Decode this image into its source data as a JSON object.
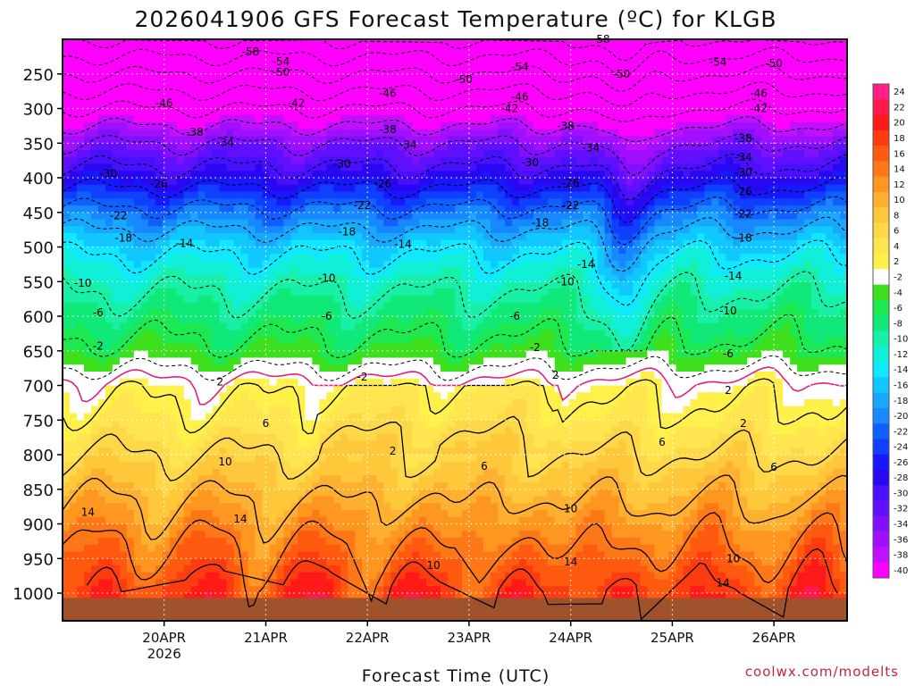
{
  "chart_data": {
    "type": "heatmap",
    "title": "2026041906 GFS Forecast Temperature (ºC) for KLGB",
    "xlabel": "Forecast Time (UTC)",
    "ylabel": "",
    "credit": "coolwx.com/modelts",
    "x_ticks": [
      {
        "label": "20APR",
        "sublabel": "2026",
        "day": 1
      },
      {
        "label": "21APR",
        "day": 2
      },
      {
        "label": "22APR",
        "day": 3
      },
      {
        "label": "23APR",
        "day": 4
      },
      {
        "label": "24APR",
        "day": 5
      },
      {
        "label": "25APR",
        "day": 6
      },
      {
        "label": "26APR",
        "day": 7
      }
    ],
    "xlim_days": [
      0.0,
      7.72
    ],
    "ylim_hpa": [
      1040,
      200
    ],
    "y_ticks": [
      250,
      300,
      350,
      400,
      450,
      500,
      550,
      600,
      650,
      700,
      750,
      800,
      850,
      900,
      950,
      1000
    ],
    "colorbar": {
      "labels": [
        24,
        22,
        20,
        18,
        16,
        14,
        12,
        10,
        8,
        6,
        4,
        2,
        -2,
        -4,
        -6,
        -8,
        -10,
        -12,
        -14,
        -16,
        -18,
        -20,
        -22,
        -24,
        -26,
        -28,
        -30,
        -32,
        -34,
        -36,
        -38,
        -40
      ],
      "colors": [
        "#ff1f86",
        "#ff1a4d",
        "#ff1a1a",
        "#ff3c10",
        "#ff5a10",
        "#ff7818",
        "#ff9620",
        "#ffb030",
        "#ffc83a",
        "#ffd84a",
        "#ffe650",
        "#fff04a",
        "#ffffff",
        "#3ee01e",
        "#1ee850",
        "#10e878",
        "#18f0a8",
        "#10f0d8",
        "#10e8ff",
        "#10c8ff",
        "#18a8ff",
        "#1888ff",
        "#1060ff",
        "#1040ff",
        "#1818ff",
        "#2808f0",
        "#4810ff",
        "#6010ff",
        "#8010ff",
        "#a010ff",
        "#c010ff",
        "#ff00ff"
      ]
    },
    "profile_pressure_hpa": [
      1000,
      950,
      900,
      850,
      800,
      750,
      700,
      650,
      600,
      550,
      500,
      450,
      400,
      350,
      300,
      250,
      200
    ],
    "profile_temperature_c": [
      18,
      15,
      12,
      9,
      6,
      3,
      1,
      -5,
      -8,
      -11,
      -15,
      -21,
      -28,
      -34,
      -42,
      -50,
      -58
    ],
    "contour_annotations": [
      {
        "value": "-58",
        "day": 1.85,
        "p": 218
      },
      {
        "value": "-58",
        "day": 5.3,
        "p": 200
      },
      {
        "value": "-54",
        "day": 2.15,
        "p": 232
      },
      {
        "value": "-54",
        "day": 4.5,
        "p": 240
      },
      {
        "value": "-54",
        "day": 6.45,
        "p": 233
      },
      {
        "value": "-50",
        "day": 2.15,
        "p": 248
      },
      {
        "value": "-50",
        "day": 3.95,
        "p": 258
      },
      {
        "value": "-50",
        "day": 5.5,
        "p": 250
      },
      {
        "value": "-50",
        "day": 7.0,
        "p": 235
      },
      {
        "value": "-46",
        "day": 1.0,
        "p": 292
      },
      {
        "value": "-46",
        "day": 3.2,
        "p": 278
      },
      {
        "value": "-46",
        "day": 4.5,
        "p": 283
      },
      {
        "value": "-46",
        "day": 6.85,
        "p": 278
      },
      {
        "value": "-42",
        "day": 2.3,
        "p": 292
      },
      {
        "value": "-42",
        "day": 4.4,
        "p": 300
      },
      {
        "value": "-42",
        "day": 6.85,
        "p": 300
      },
      {
        "value": "-38",
        "day": 1.3,
        "p": 334
      },
      {
        "value": "-38",
        "day": 3.2,
        "p": 330
      },
      {
        "value": "-38",
        "day": 4.95,
        "p": 325
      },
      {
        "value": "-38",
        "day": 6.7,
        "p": 343
      },
      {
        "value": "-34",
        "day": 1.6,
        "p": 349
      },
      {
        "value": "-34",
        "day": 3.4,
        "p": 352
      },
      {
        "value": "-34",
        "day": 5.2,
        "p": 357
      },
      {
        "value": "-34",
        "day": 6.7,
        "p": 370
      },
      {
        "value": "-30",
        "day": 0.45,
        "p": 394
      },
      {
        "value": "-30",
        "day": 2.75,
        "p": 380
      },
      {
        "value": "-30",
        "day": 4.6,
        "p": 378
      },
      {
        "value": "-30",
        "day": 6.7,
        "p": 392
      },
      {
        "value": "-26",
        "day": 0.95,
        "p": 409
      },
      {
        "value": "-26",
        "day": 3.15,
        "p": 409
      },
      {
        "value": "-26",
        "day": 5.0,
        "p": 408
      },
      {
        "value": "-26",
        "day": 6.7,
        "p": 420
      },
      {
        "value": "-22",
        "day": 0.55,
        "p": 455
      },
      {
        "value": "-22",
        "day": 2.95,
        "p": 440
      },
      {
        "value": "-22",
        "day": 5.0,
        "p": 440
      },
      {
        "value": "-22",
        "day": 6.7,
        "p": 452
      },
      {
        "value": "-18",
        "day": 0.6,
        "p": 487
      },
      {
        "value": "-18",
        "day": 2.8,
        "p": 478
      },
      {
        "value": "-18",
        "day": 4.7,
        "p": 465
      },
      {
        "value": "-18",
        "day": 6.7,
        "p": 487
      },
      {
        "value": "-14",
        "day": 1.2,
        "p": 495
      },
      {
        "value": "-14",
        "day": 3.35,
        "p": 496
      },
      {
        "value": "-14",
        "day": 5.15,
        "p": 525
      },
      {
        "value": "-14",
        "day": 6.6,
        "p": 542
      },
      {
        "value": "-10",
        "day": 0.2,
        "p": 552
      },
      {
        "value": "-10",
        "day": 2.6,
        "p": 545
      },
      {
        "value": "-10",
        "day": 4.95,
        "p": 550
      },
      {
        "value": "-10",
        "day": 6.55,
        "p": 592
      },
      {
        "value": "-6",
        "day": 0.35,
        "p": 595
      },
      {
        "value": "-6",
        "day": 2.6,
        "p": 600
      },
      {
        "value": "-6",
        "day": 4.45,
        "p": 600
      },
      {
        "value": "-6",
        "day": 6.55,
        "p": 654
      },
      {
        "value": "-2",
        "day": 0.35,
        "p": 643
      },
      {
        "value": "-2",
        "day": 2.95,
        "p": 688
      },
      {
        "value": "-2",
        "day": 4.65,
        "p": 645
      },
      {
        "value": "2",
        "day": 1.55,
        "p": 695
      },
      {
        "value": "2",
        "day": 3.25,
        "p": 795
      },
      {
        "value": "2",
        "day": 4.85,
        "p": 685
      },
      {
        "value": "2",
        "day": 6.55,
        "p": 707
      },
      {
        "value": "2",
        "day": 6.7,
        "p": 755
      },
      {
        "value": "6",
        "day": 2.0,
        "p": 755
      },
      {
        "value": "6",
        "day": 4.15,
        "p": 817
      },
      {
        "value": "6",
        "day": 5.9,
        "p": 782
      },
      {
        "value": "6",
        "day": 7.0,
        "p": 818
      },
      {
        "value": "10",
        "day": 1.6,
        "p": 810
      },
      {
        "value": "10",
        "day": 3.65,
        "p": 960
      },
      {
        "value": "10",
        "day": 5.0,
        "p": 878
      },
      {
        "value": "10",
        "day": 6.6,
        "p": 950
      },
      {
        "value": "14",
        "day": 0.25,
        "p": 883
      },
      {
        "value": "14",
        "day": 1.75,
        "p": 893
      },
      {
        "value": "14",
        "day": 5.0,
        "p": 955
      },
      {
        "value": "14",
        "day": 6.5,
        "p": 985
      }
    ]
  }
}
